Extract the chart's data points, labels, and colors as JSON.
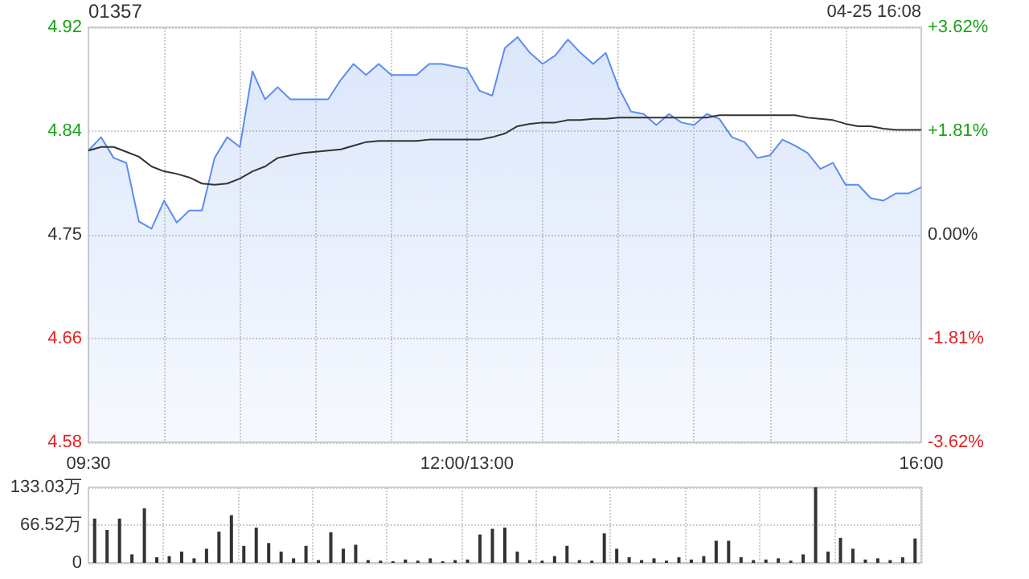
{
  "chart_data": [
    {
      "type": "line",
      "title": "01357",
      "annotations": [
        "04-25 16:08"
      ],
      "categories": [
        "09:30",
        null,
        null,
        null,
        null,
        null,
        null,
        null,
        null,
        null,
        null,
        null,
        null,
        null,
        null,
        null,
        null,
        null,
        null,
        null,
        null,
        null,
        null,
        null,
        null,
        null,
        null,
        null,
        null,
        null,
        "12:00/13:00",
        null,
        null,
        null,
        null,
        null,
        null,
        null,
        null,
        null,
        null,
        null,
        null,
        null,
        null,
        null,
        null,
        null,
        null,
        null,
        null,
        null,
        null,
        null,
        null,
        null,
        null,
        null,
        null,
        null,
        null,
        null,
        null,
        null,
        null,
        null,
        "16:00"
      ],
      "series": [
        {
          "type": "area",
          "color": "#5b8def",
          "values": [
            4.819,
            4.83,
            4.813,
            4.809,
            4.761,
            4.755,
            4.778,
            4.76,
            4.77,
            4.77,
            4.813,
            4.83,
            4.822,
            4.884,
            4.861,
            4.871,
            4.861,
            4.861,
            4.861,
            4.861,
            4.877,
            4.89,
            4.881,
            4.89,
            4.881,
            4.881,
            4.881,
            4.89,
            4.89,
            4.888,
            4.886,
            4.868,
            4.864,
            4.903,
            4.912,
            4.899,
            4.89,
            4.897,
            4.91,
            4.899,
            4.89,
            4.899,
            4.871,
            4.851,
            4.849,
            4.84,
            4.849,
            4.842,
            4.84,
            4.849,
            4.845,
            4.83,
            4.826,
            4.813,
            4.815,
            4.828,
            4.823,
            4.817,
            4.804,
            4.809,
            4.791,
            4.791,
            4.78,
            4.778,
            4.784,
            4.784,
            4.789
          ]
        },
        {
          "type": "line",
          "color": "#333333",
          "values": [
            4.819,
            4.822,
            4.822,
            4.818,
            4.814,
            4.806,
            4.802,
            4.8,
            4.797,
            4.792,
            4.791,
            4.792,
            4.796,
            4.802,
            4.806,
            4.813,
            4.815,
            4.817,
            4.818,
            4.819,
            4.82,
            4.823,
            4.826,
            4.827,
            4.827,
            4.827,
            4.827,
            4.828,
            4.828,
            4.828,
            4.828,
            4.828,
            4.83,
            4.833,
            4.839,
            4.841,
            4.842,
            4.842,
            4.844,
            4.844,
            4.845,
            4.845,
            4.846,
            4.846,
            4.846,
            4.846,
            4.846,
            4.846,
            4.846,
            4.846,
            4.848,
            4.848,
            4.848,
            4.848,
            4.848,
            4.848,
            4.848,
            4.846,
            4.845,
            4.844,
            4.841,
            4.839,
            4.839,
            4.837,
            4.836,
            4.836,
            4.836
          ]
        }
      ],
      "ylim": [
        4.58,
        4.92
      ],
      "yticks": [
        4.58,
        {
          "value": 4.665,
          "label": "4.66"
        },
        4.75,
        {
          "value": 4.835,
          "label": "4.84"
        },
        4.92
      ],
      "y2lim": [
        -3.62,
        3.62
      ],
      "y2ticks": [
        {
          "value": -3.62,
          "label": "-3.62%"
        },
        {
          "value": -1.81,
          "label": "-1.81%"
        },
        {
          "value": 0,
          "label": "0.00%"
        },
        {
          "value": 1.81,
          "label": "+1.81%"
        },
        {
          "value": 3.62,
          "label": "+3.62%"
        }
      ],
      "grid": true,
      "marker": "none",
      "line_style": "solid"
    },
    {
      "type": "bar",
      "color": "#333333",
      "categories": [
        null,
        null,
        null,
        null,
        null,
        null,
        null,
        null,
        null,
        null,
        null,
        null,
        null,
        null,
        null,
        null,
        null,
        null,
        null,
        null,
        null,
        null,
        null,
        null,
        null,
        null,
        null,
        null,
        null,
        null,
        null,
        null,
        null,
        null,
        null,
        null,
        null,
        null,
        null,
        null,
        null,
        null,
        null,
        null,
        null,
        null,
        null,
        null,
        null,
        null,
        null,
        null,
        null,
        null,
        null,
        null,
        null,
        null,
        null,
        null,
        null,
        null,
        null,
        null,
        null,
        null,
        null
      ],
      "values": [
        78,
        58,
        78,
        15,
        96,
        10,
        12,
        20,
        8,
        25,
        55,
        84,
        30,
        62,
        35,
        20,
        8,
        30,
        5,
        54,
        25,
        32,
        5,
        4,
        3,
        6,
        4,
        8,
        3,
        5,
        6,
        50,
        60,
        62,
        20,
        5,
        4,
        12,
        30,
        5,
        4,
        52,
        25,
        10,
        5,
        8,
        4,
        10,
        6,
        12,
        39,
        39,
        10,
        5,
        6,
        8,
        4,
        15,
        133,
        20,
        44,
        25,
        6,
        8,
        5,
        10,
        43
      ],
      "ylim": [
        0,
        133.03
      ],
      "yticks": [
        0,
        {
          "value": 66.52,
          "label": "66.52万"
        },
        {
          "value": 133.03,
          "label": "133.03万"
        }
      ],
      "tick_labels": "y",
      "grid": true
    }
  ]
}
